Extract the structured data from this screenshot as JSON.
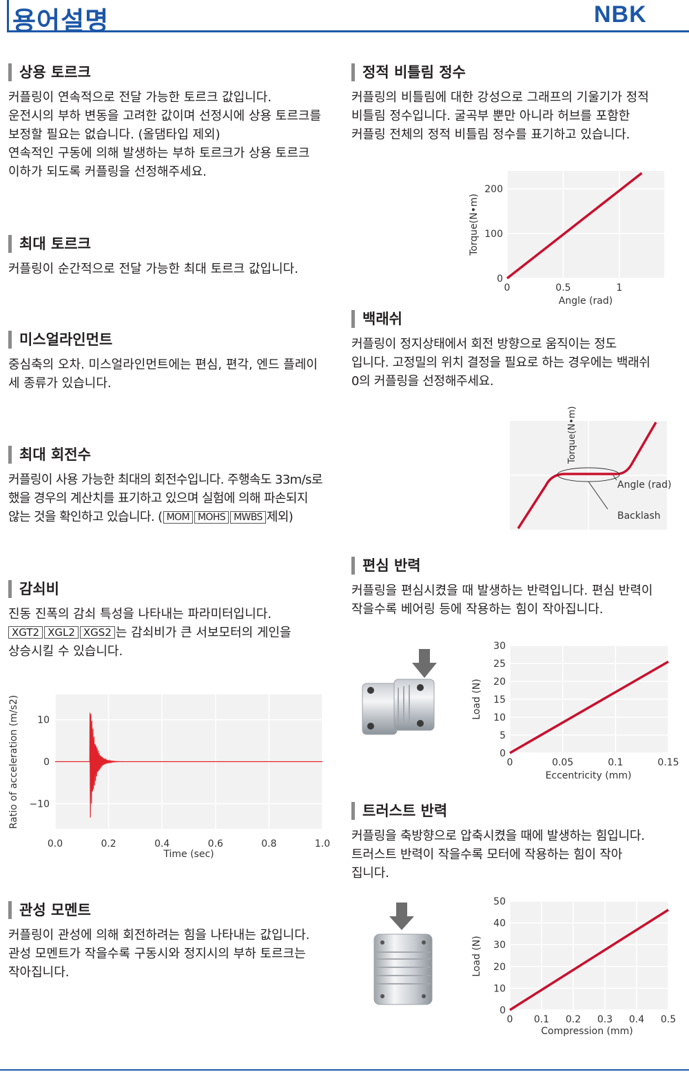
{
  "header": {
    "title": "용어설명",
    "logo": "NBK"
  },
  "sections": {
    "rated_torque": {
      "title": "상용 토르크",
      "lines": [
        "커플링이 연속적으로 전달 가능한 토르크 값입니다.",
        "운전시의 부하 변동을 고려한 값이며 선정시에 상용 토르크를",
        "보정할 필요는 없습니다. (올댐타입 제외)",
        "연속적인 구동에 의해 발생하는 부하 토르크가 상용 토르크",
        "이하가 되도록 커플링을 선정해주세요."
      ]
    },
    "max_torque": {
      "title": "최대 토르크",
      "lines": [
        "커플링이 순간적으로 전달 가능한 최대 토르크 값입니다."
      ]
    },
    "misalignment": {
      "title": "미스얼라인먼트",
      "lines": [
        "중심축의 오차. 미스얼라인먼트에는 편심, 편각, 엔드 플레이",
        "세 종류가 있습니다."
      ]
    },
    "max_speed": {
      "title": "최대 회전수",
      "lines": [
        "커플링이 사용 가능한 최대의 회전수입니다. 주행속도 33m/s로",
        "했을 경우의 계산치를 표기하고 있으며 실험에 의해 파손되지"
      ],
      "last_prefix": "않는 것을 확인하고 있습니다. (",
      "models": [
        "MOM",
        "MOHS",
        "MWBS"
      ],
      "last_suffix": "제외)"
    },
    "damping": {
      "title": "감쇠비",
      "line1": "진동 진폭의 감쇠 특성을 나타내는 파라미터입니다.",
      "models": [
        "XGT2",
        "XGL2",
        "XGS2"
      ],
      "line2_suffix": "는 감쇠비가 큰 서보모터의 게인을",
      "line3": "상승시킬 수 있습니다."
    },
    "inertia": {
      "title": "관성 모멘트",
      "lines": [
        "커플링이 관성에 의해 회전하려는 힘을 나타내는 값입니다.",
        "관성 모멘트가 작을수록 구동시와 정지시의 부하 토르크는",
        "작아집니다."
      ]
    },
    "stiffness": {
      "title": "정적 비틀림 정수",
      "lines": [
        "커플링의 비틀림에 대한 강성으로 그래프의 기울기가 정적",
        "비틀림 정수입니다. 굴곡부 뿐만 아니라 허브를 포함한",
        "커플링 전체의 정적 비틀림 정수를 표기하고 있습니다."
      ]
    },
    "backlash": {
      "title": "백래쉬",
      "lines": [
        "커플링이 정지상태에서 회전 방향으로 움직이는 정도",
        "입니다. 고정밀의 위치 결정을 필요로 하는 경우에는 백래쉬",
        "0의 커플링을 선정해주세요."
      ]
    },
    "radial_force": {
      "title": "편심 반력",
      "lines": [
        "커플링을 편심시켰을 때 발생하는 반력입니다. 편심 반력이",
        "작을수록 베어링 등에 작용하는 힘이 작아집니다."
      ]
    },
    "thrust_force": {
      "title": "트러스트 반력",
      "lines": [
        "커플링을 축방향으로 압축시켰을 때에 발생하는 힘입니다.",
        "트러스트 반력이 작을수록 모터에 작용하는 힘이 작아",
        "집니다."
      ]
    }
  },
  "chart_data": [
    {
      "type": "line",
      "id": "damping",
      "xlabel": "Time (sec)",
      "ylabel": "Ratio of acceleration (m/s2)",
      "xlim": [
        0,
        1
      ],
      "ylim": [
        -16,
        16
      ],
      "xticks": [
        "0.0",
        "0.2",
        "0.4",
        "0.6",
        "0.8",
        "1.0"
      ],
      "yticks": [
        "10",
        "0",
        "−10"
      ],
      "series": [
        {
          "description": "damped oscillation starting ~0.13 s, peak ~15, decays to 0 by ~0.2 s",
          "impulse_time": 0.13,
          "amplitude": 15,
          "color": "#e0232b"
        }
      ],
      "grid": true
    },
    {
      "type": "line",
      "id": "stiffness",
      "xlabel": "Angle (rad)",
      "ylabel": "Torque(N•m)",
      "xticks": [
        "0",
        "0.5",
        "1"
      ],
      "yticks": [
        "0",
        "100",
        "200"
      ],
      "xlim": [
        0,
        1.4
      ],
      "ylim": [
        0,
        240
      ],
      "series": [
        {
          "x": [
            0,
            1.2
          ],
          "y": [
            0,
            235
          ],
          "color": "#c8102e"
        }
      ],
      "grid": true
    },
    {
      "type": "line",
      "id": "backlash",
      "labels": {
        "y": "Torque(N•m)",
        "x": "Angle (rad)",
        "annotation": "Backlash"
      },
      "grid": true
    },
    {
      "type": "line",
      "id": "radial",
      "xlabel": "Eccentricity (mm)",
      "ylabel": "Load (N)",
      "xticks": [
        "0",
        "0.05",
        "0.1",
        "0.15"
      ],
      "yticks": [
        "0",
        "5",
        "10",
        "15",
        "20",
        "25",
        "30"
      ],
      "xlim": [
        0,
        0.15
      ],
      "ylim": [
        0,
        30
      ],
      "series": [
        {
          "x": [
            0,
            0.15
          ],
          "y": [
            0,
            25.5
          ],
          "color": "#c8102e"
        }
      ],
      "grid": true
    },
    {
      "type": "line",
      "id": "thrust",
      "xlabel": "Compression (mm)",
      "ylabel": "Load (N)",
      "xticks": [
        "0",
        "0.1",
        "0.2",
        "0.3",
        "0.4",
        "0.5"
      ],
      "yticks": [
        "0",
        "10",
        "20",
        "30",
        "40",
        "50"
      ],
      "xlim": [
        0,
        0.5
      ],
      "ylim": [
        0,
        50
      ],
      "series": [
        {
          "x": [
            0,
            0.5
          ],
          "y": [
            0,
            46
          ],
          "color": "#c8102e"
        }
      ],
      "grid": true
    }
  ]
}
